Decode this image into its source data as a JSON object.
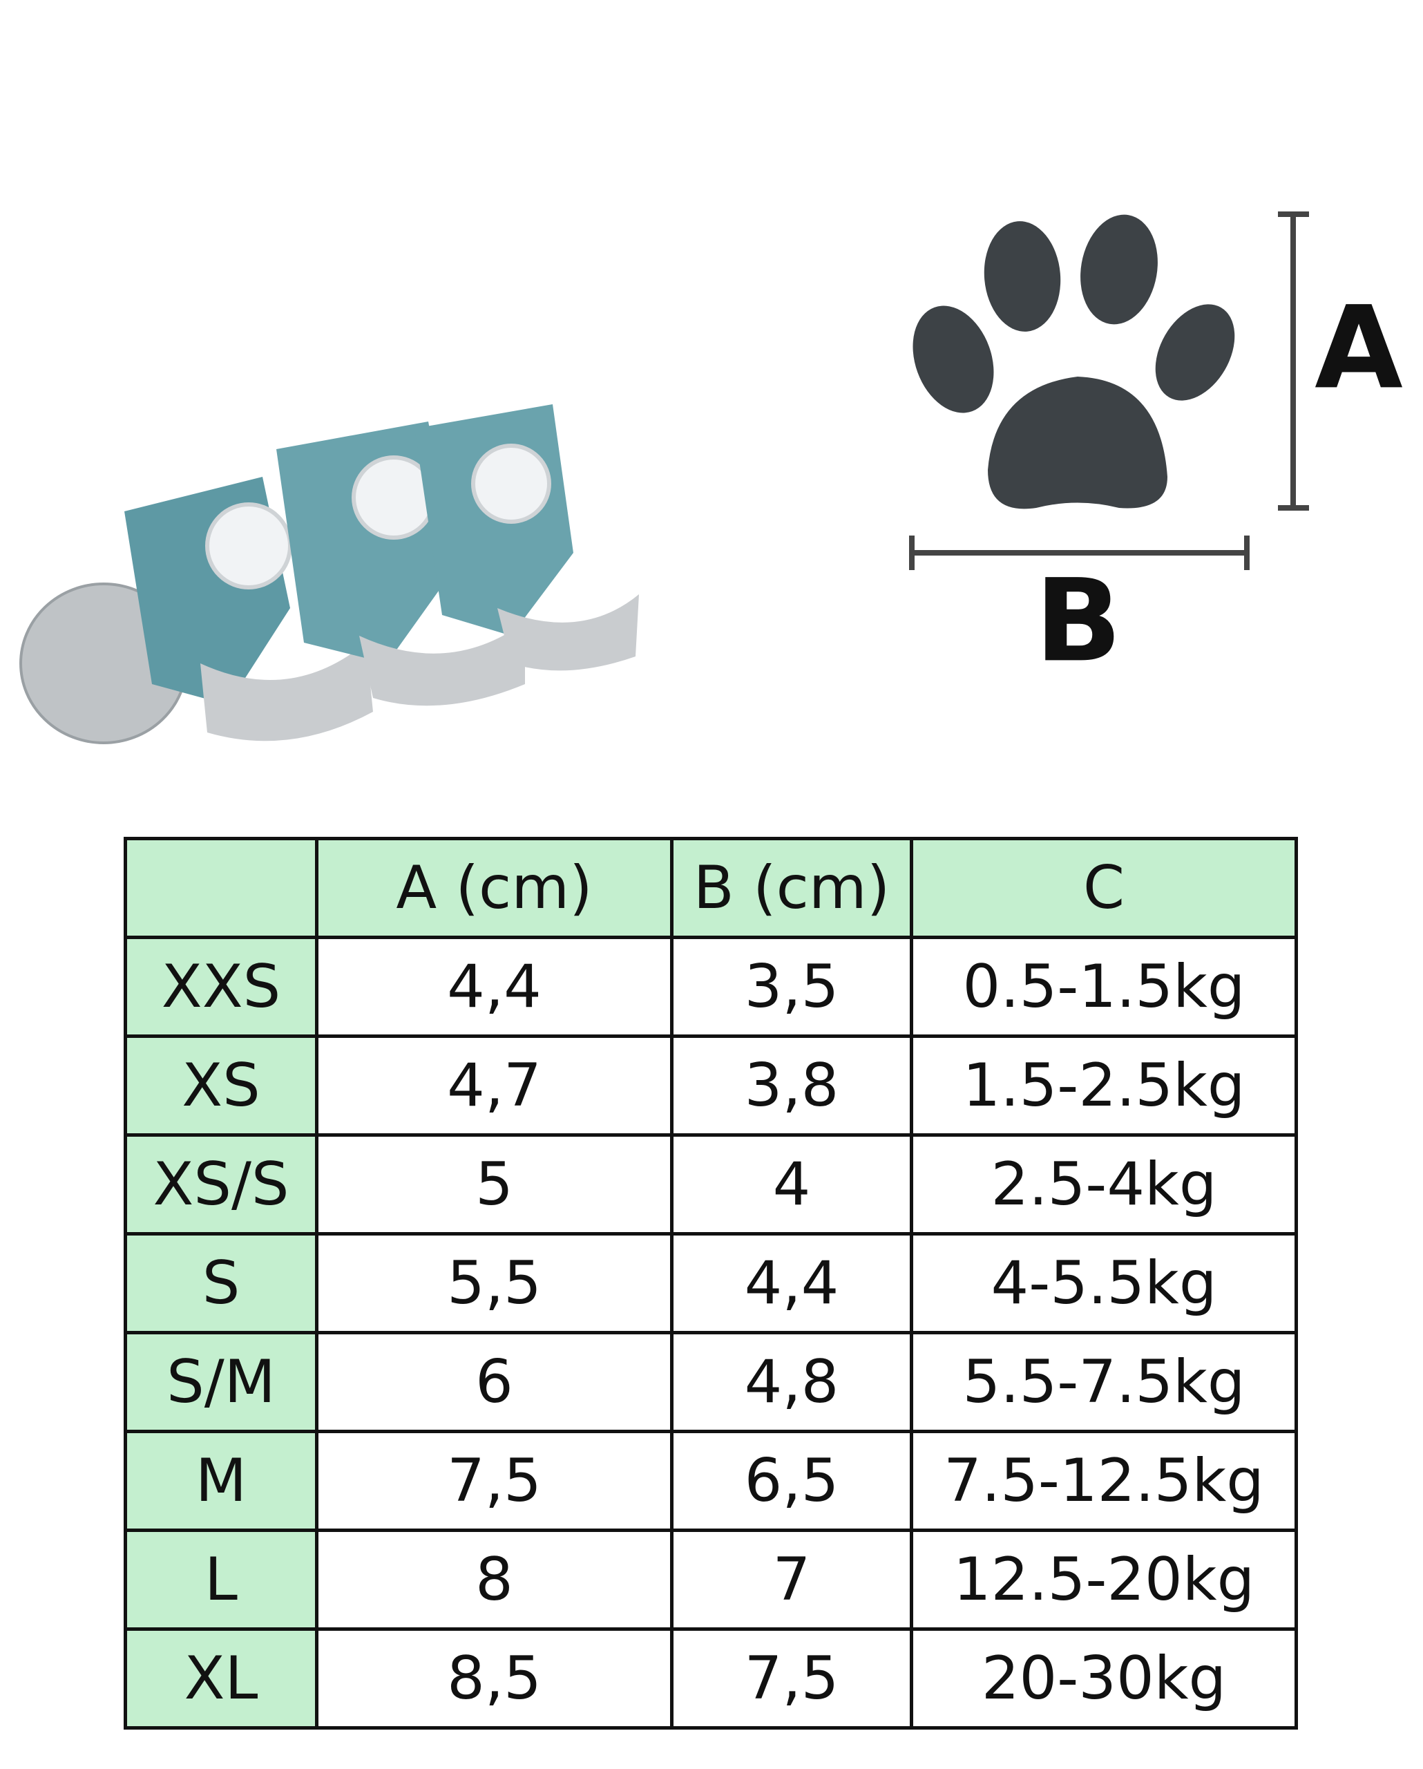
{
  "diagram": {
    "label_a": "A",
    "label_b": "B"
  },
  "table": {
    "columns": [
      "A (cm)",
      "B (cm)",
      "C"
    ],
    "rows": [
      [
        "XXS",
        "4,4",
        "3,5",
        "0.5-1.5kg"
      ],
      [
        "XS",
        "4,7",
        "3,8",
        "1.5-2.5kg"
      ],
      [
        "XS/S",
        "5",
        "4",
        "2.5-4kg"
      ],
      [
        "S",
        "5,5",
        "4,4",
        "4-5.5kg"
      ],
      [
        "S/M",
        "6",
        "4,8",
        "5.5-7.5kg"
      ],
      [
        "M",
        "7,5",
        "6,5",
        "7.5-12.5kg"
      ],
      [
        "L",
        "8",
        "7",
        "12.5-20kg"
      ],
      [
        "XL",
        "8,5",
        "7,5",
        "20-30kg"
      ]
    ]
  }
}
